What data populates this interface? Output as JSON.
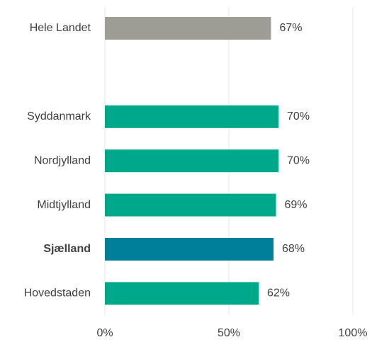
{
  "chart_data": {
    "type": "bar",
    "orientation": "horizontal",
    "categories": [
      "Hele Landet",
      null,
      "Syddanmark",
      "Nordjylland",
      "Midtjylland",
      "Sjælland",
      "Hovedstaden"
    ],
    "values": [
      67,
      null,
      70,
      70,
      69,
      68,
      62
    ],
    "value_labels": [
      "67%",
      null,
      "70%",
      "70%",
      "69%",
      "68%",
      "62%"
    ],
    "colors": [
      "#9d9d96",
      null,
      "#00a88a",
      "#00a88a",
      "#00a88a",
      "#007f9a",
      "#00a88a"
    ],
    "label_bold": [
      false,
      null,
      false,
      false,
      false,
      true,
      false
    ],
    "xlim": [
      0,
      100
    ],
    "xticks": [
      {
        "value": 0,
        "label": "0%"
      },
      {
        "value": 50,
        "label": "50%"
      },
      {
        "value": 100,
        "label": "100%"
      }
    ],
    "grid": true
  }
}
